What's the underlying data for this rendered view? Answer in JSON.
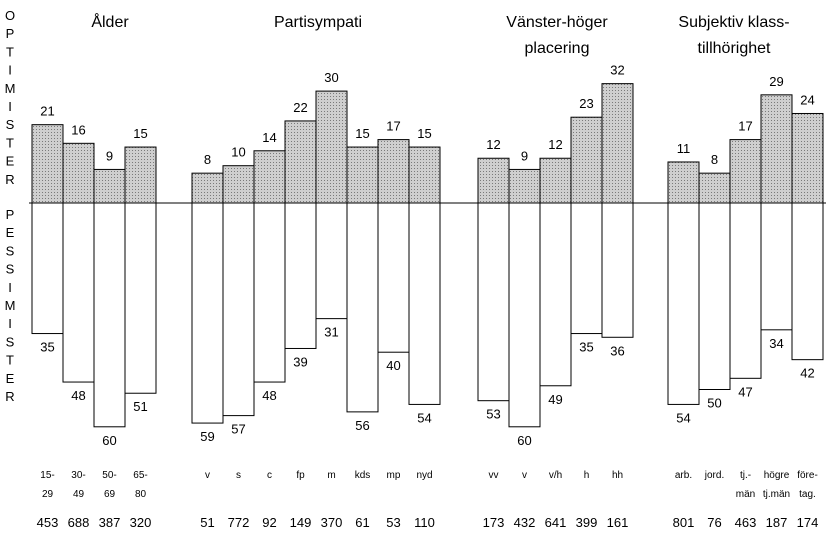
{
  "chart_data": {
    "type": "bar",
    "axis_labels": {
      "optimister": [
        "O",
        "P",
        "T",
        "I",
        "M",
        "I",
        "S",
        "T",
        "E",
        "R"
      ],
      "pessimister": [
        "P",
        "E",
        "S",
        "S",
        "I",
        "M",
        "I",
        "S",
        "T",
        "E",
        "R"
      ]
    },
    "colors": {
      "optimist_fill": "#cfcfcf",
      "pessimist_fill": "#ffffff",
      "stroke": "#000000"
    },
    "groups": [
      {
        "title": [
          "Ålder"
        ],
        "categories": [
          [
            "15-",
            "29"
          ],
          [
            "30-",
            "49"
          ],
          [
            "50-",
            "69"
          ],
          [
            "65-",
            "80"
          ]
        ],
        "optimister": [
          21,
          16,
          9,
          15
        ],
        "pessimister": [
          35,
          48,
          60,
          51
        ],
        "n": [
          "453",
          "688",
          "387",
          "320"
        ]
      },
      {
        "title": [
          "Partisympati"
        ],
        "categories": [
          [
            "v"
          ],
          [
            "s"
          ],
          [
            "c"
          ],
          [
            "fp"
          ],
          [
            "m"
          ],
          [
            "kds"
          ],
          [
            "mp"
          ],
          [
            "nyd"
          ]
        ],
        "optimister": [
          8,
          10,
          14,
          22,
          30,
          15,
          17,
          15
        ],
        "pessimister": [
          59,
          57,
          48,
          39,
          31,
          56,
          40,
          54
        ],
        "n": [
          "51",
          "772",
          "92",
          "149",
          "370",
          "61",
          "53",
          "110"
        ]
      },
      {
        "title": [
          "Vänster-höger",
          "placering"
        ],
        "categories": [
          [
            "vv"
          ],
          [
            "v"
          ],
          [
            "v/h"
          ],
          [
            "h"
          ],
          [
            "hh"
          ]
        ],
        "optimister": [
          12,
          9,
          12,
          23,
          32
        ],
        "pessimister": [
          53,
          60,
          49,
          35,
          36
        ],
        "n": [
          "173",
          "432",
          "641",
          "399",
          "161"
        ]
      },
      {
        "title": [
          "Subjektiv klass-",
          "tillhörighet"
        ],
        "categories": [
          [
            "arb."
          ],
          [
            "jord."
          ],
          [
            "tj.-",
            "män"
          ],
          [
            "högre",
            "tj.män"
          ],
          [
            "före-",
            "tag."
          ]
        ],
        "optimister": [
          11,
          8,
          17,
          29,
          24
        ],
        "pessimister": [
          54,
          50,
          47,
          34,
          42
        ],
        "n": [
          "801",
          "76",
          "463",
          "187",
          "174"
        ]
      }
    ]
  }
}
